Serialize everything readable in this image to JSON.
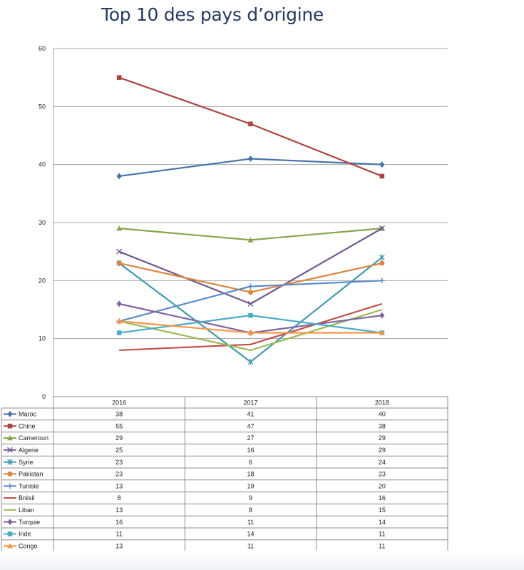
{
  "chart_data": {
    "type": "line",
    "title": "Top 10 des pays d’origine",
    "categories": [
      "2016",
      "2017",
      "2018"
    ],
    "ylim": [
      0,
      60
    ],
    "yticks": [
      0,
      10,
      20,
      30,
      40,
      50,
      60
    ],
    "grid": true,
    "legend_placement": "data-table-below",
    "series": [
      {
        "name": "Maroc",
        "values": [
          38,
          41,
          40
        ],
        "color": "#4572a7",
        "marker": "diamond"
      },
      {
        "name": "Chine",
        "values": [
          55,
          47,
          38
        ],
        "color": "#aa4643",
        "marker": "square"
      },
      {
        "name": "Cameroun",
        "values": [
          29,
          27,
          29
        ],
        "color": "#89a54e",
        "marker": "triangle"
      },
      {
        "name": "Algerie",
        "values": [
          25,
          16,
          29
        ],
        "color": "#71588f",
        "marker": "x"
      },
      {
        "name": "Syrie",
        "values": [
          23,
          6,
          24
        ],
        "color": "#4198af",
        "marker": "star"
      },
      {
        "name": "Pakistan",
        "values": [
          23,
          18,
          23
        ],
        "color": "#db843d",
        "marker": "circle"
      },
      {
        "name": "Tunisie",
        "values": [
          13,
          19,
          20
        ],
        "color": "#5b8ac8",
        "marker": "plus"
      },
      {
        "name": "Brésil",
        "values": [
          8,
          9,
          16
        ],
        "color": "#c0504d",
        "marker": "none"
      },
      {
        "name": "Liban",
        "values": [
          13,
          8,
          15
        ],
        "color": "#9bbb59",
        "marker": "none"
      },
      {
        "name": "Turquie",
        "values": [
          16,
          11,
          14
        ],
        "color": "#8064a2",
        "marker": "diamond"
      },
      {
        "name": "Inde",
        "values": [
          11,
          14,
          11
        ],
        "color": "#4bacc6",
        "marker": "square"
      },
      {
        "name": "Congo",
        "values": [
          13,
          11,
          11
        ],
        "color": "#f79646",
        "marker": "triangle"
      }
    ]
  }
}
